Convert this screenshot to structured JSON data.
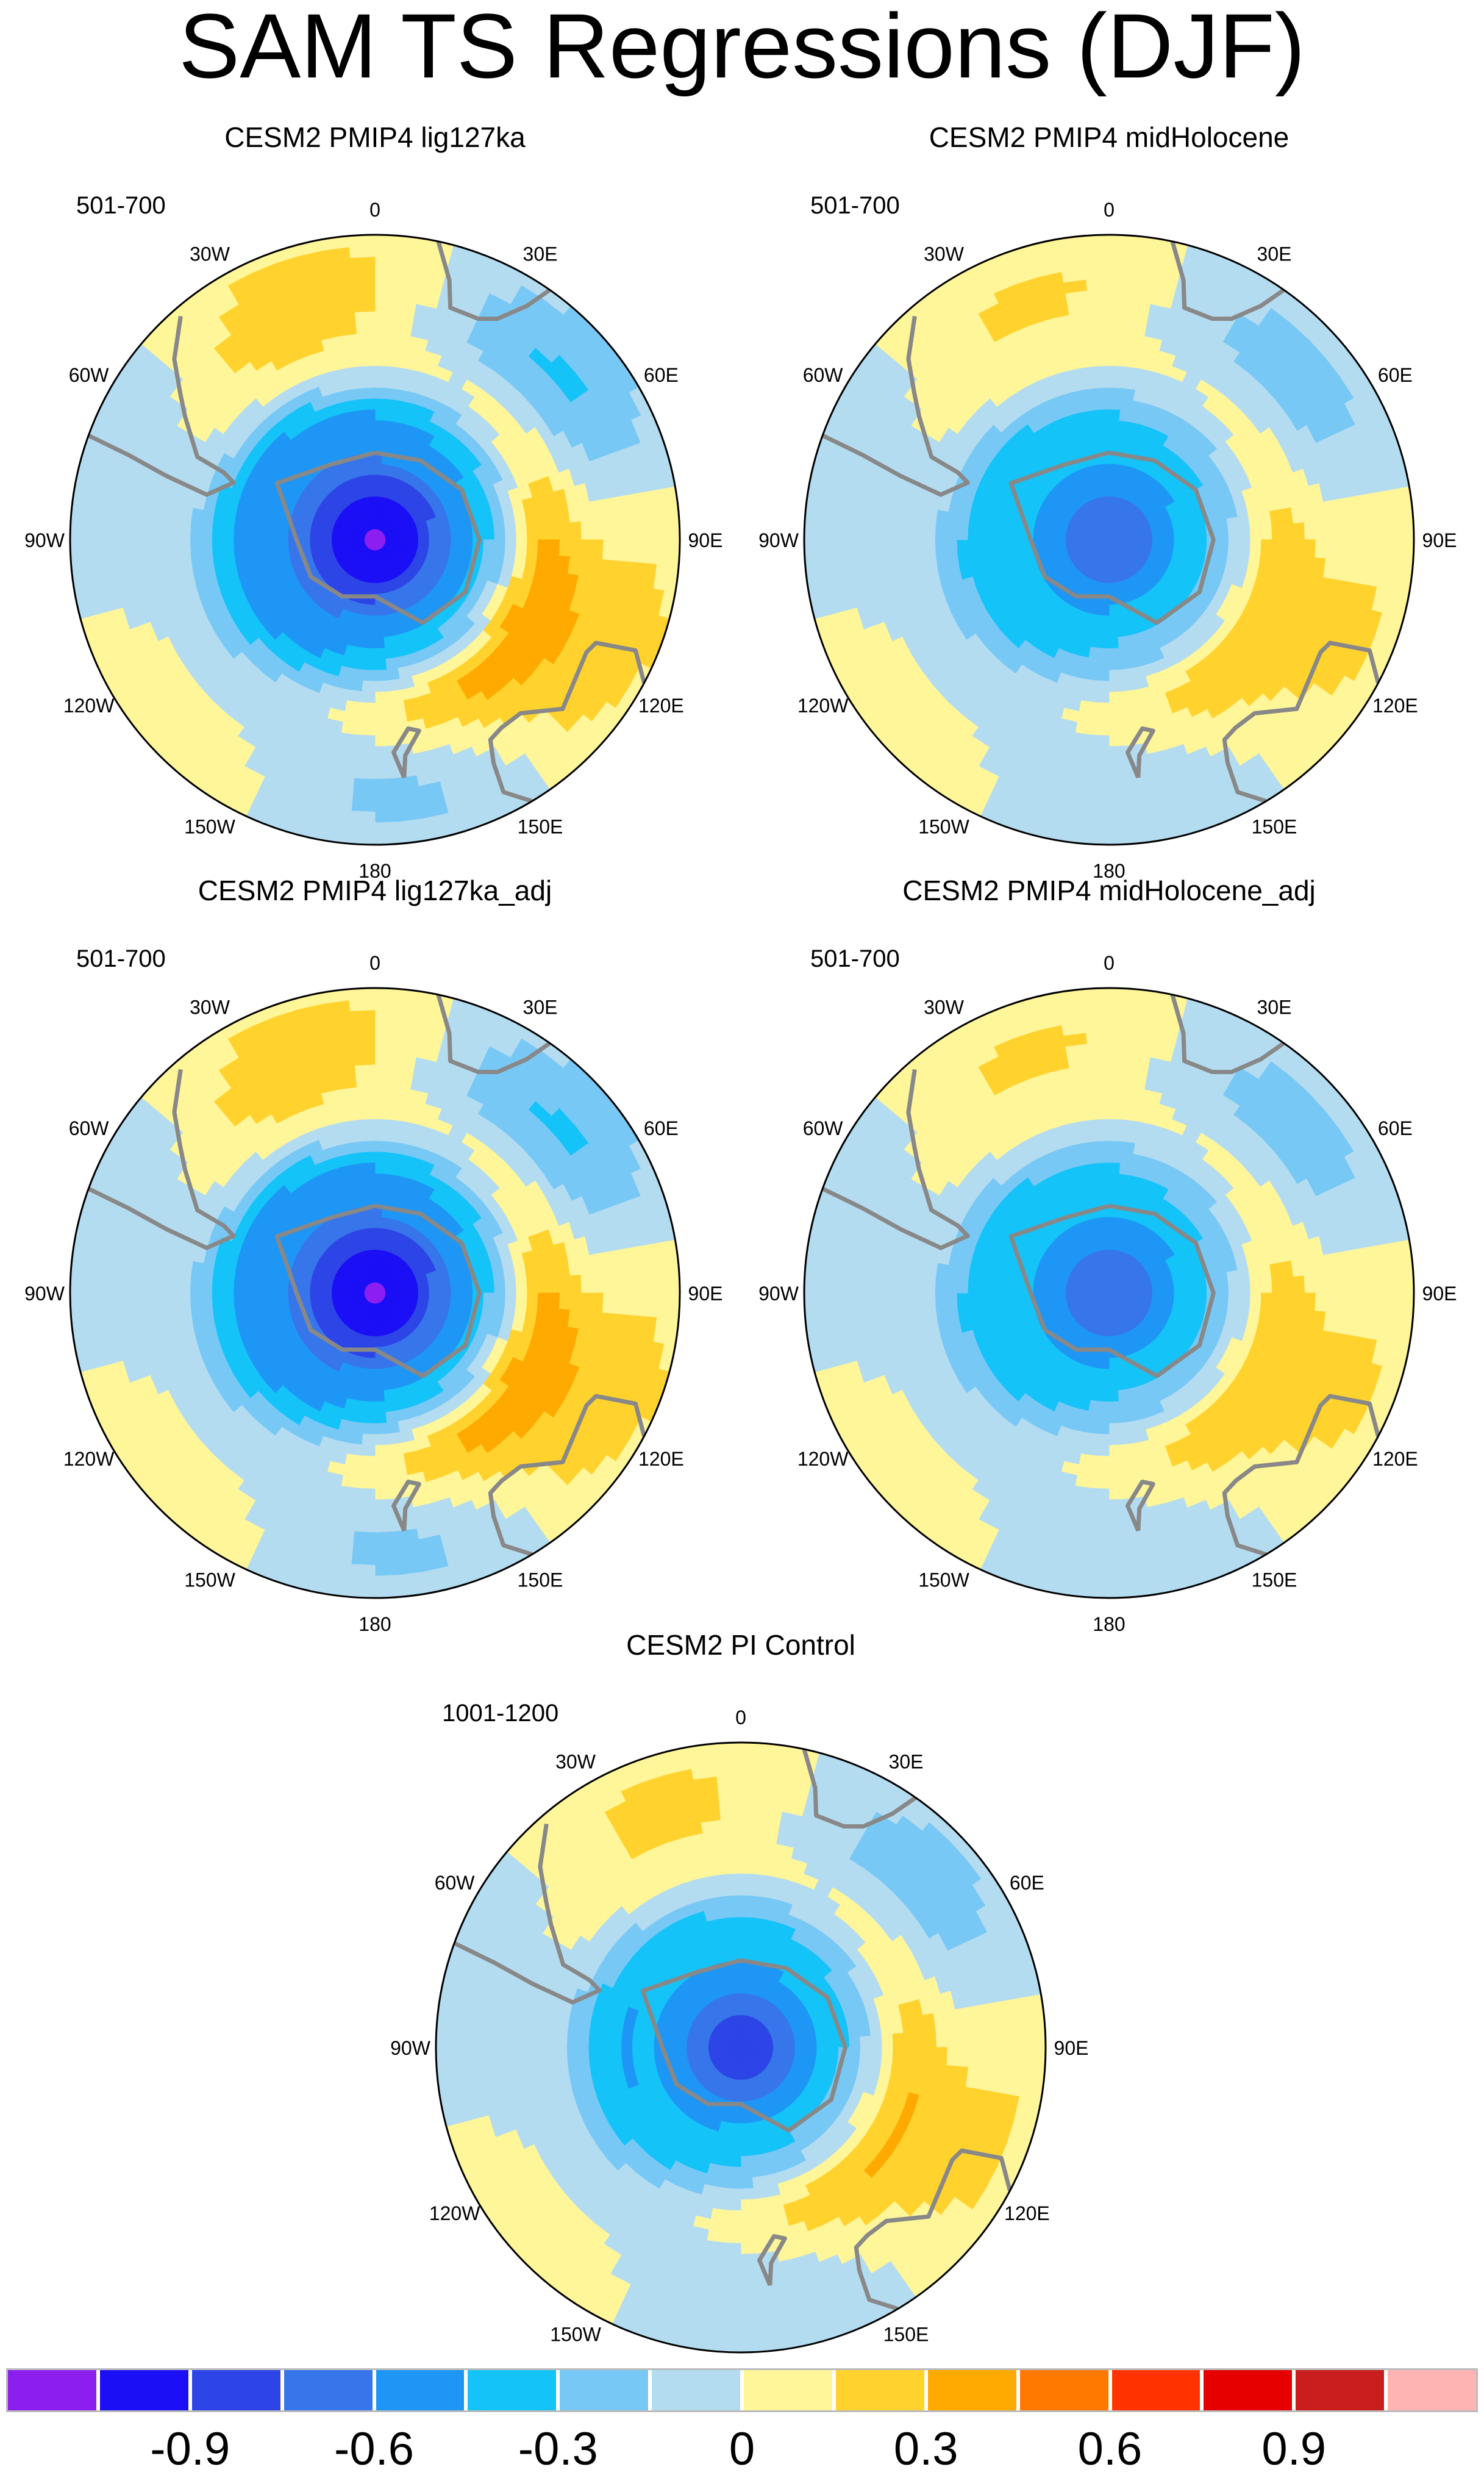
{
  "title": "SAM TS Regressions (DJF)",
  "lon_labels": [
    "0",
    "30E",
    "60E",
    "90E",
    "120E",
    "150E",
    "180",
    "150W",
    "120W",
    "90W",
    "60W",
    "30W"
  ],
  "panels": [
    {
      "title": "CESM2 PMIP4 lig127ka",
      "years": "501-700",
      "strength": 1.25
    },
    {
      "title": "CESM2 PMIP4 midHolocene",
      "years": "501-700",
      "strength": 0.85
    },
    {
      "title": "CESM2 PMIP4 lig127ka_adj",
      "years": "501-700",
      "strength": 1.25
    },
    {
      "title": "CESM2 PMIP4 midHolocene_adj",
      "years": "501-700",
      "strength": 0.85
    },
    {
      "title": "CESM2 PI Control",
      "years": "1001-1200",
      "strength": 0.95
    }
  ],
  "colorbar": {
    "colors": [
      "#8c1ff0",
      "#1a0ff5",
      "#2d45e6",
      "#3776ea",
      "#1e96f5",
      "#14c3f8",
      "#78c8f5",
      "#b4dcf0",
      "#fff599",
      "#ffd22d",
      "#ffaa00",
      "#ff7800",
      "#ff3200",
      "#e60000",
      "#c81e1e",
      "#ffb4b4"
    ],
    "labels": [
      "-0.9",
      "-0.6",
      "-0.3",
      "0",
      "0.3",
      "0.6",
      "0.9"
    ],
    "boundaries": [
      -1.05,
      -0.9,
      -0.75,
      -0.6,
      -0.45,
      -0.3,
      -0.15,
      0,
      0.15,
      0.3,
      0.45,
      0.6,
      0.75,
      0.9,
      1.05
    ]
  },
  "coast_color": "#888888"
}
